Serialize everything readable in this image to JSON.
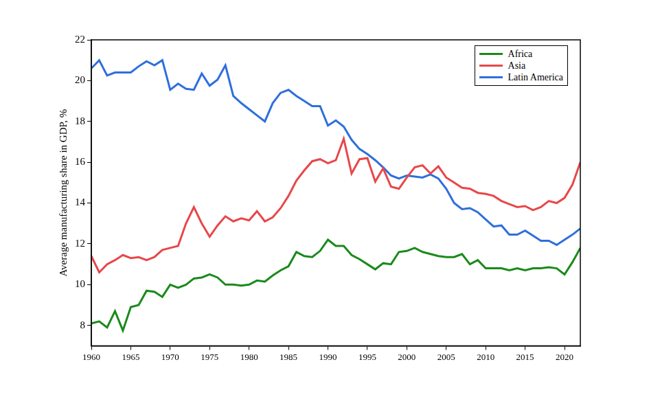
{
  "chart_data": {
    "type": "line",
    "y_label": "Average manufacturing share in GDP, %",
    "x": [
      1960,
      1961,
      1962,
      1963,
      1964,
      1965,
      1966,
      1967,
      1968,
      1969,
      1970,
      1971,
      1972,
      1973,
      1974,
      1975,
      1976,
      1977,
      1978,
      1979,
      1980,
      1981,
      1982,
      1983,
      1984,
      1985,
      1986,
      1987,
      1988,
      1989,
      1990,
      1991,
      1992,
      1993,
      1994,
      1995,
      1996,
      1997,
      1998,
      1999,
      2000,
      2001,
      2002,
      2003,
      2004,
      2005,
      2006,
      2007,
      2008,
      2009,
      2010,
      2011,
      2012,
      2013,
      2014,
      2015,
      2016,
      2017,
      2018,
      2019,
      2020,
      2021,
      2022
    ],
    "series": [
      {
        "name": "Africa",
        "color": "#1a8a1a",
        "values": [
          8.1,
          8.2,
          7.9,
          8.7,
          7.75,
          8.9,
          9.0,
          9.7,
          9.65,
          9.4,
          10.0,
          9.85,
          10.0,
          10.3,
          10.35,
          10.5,
          10.35,
          10.0,
          10.0,
          9.95,
          10.0,
          10.2,
          10.15,
          10.45,
          10.7,
          10.9,
          11.6,
          11.4,
          11.35,
          11.65,
          12.2,
          11.9,
          11.9,
          11.45,
          11.25,
          11.0,
          10.75,
          11.05,
          11.0,
          11.6,
          11.65,
          11.8,
          11.6,
          11.5,
          11.4,
          11.35,
          11.35,
          11.5,
          11.0,
          11.2,
          10.8,
          10.8,
          10.8,
          10.7,
          10.8,
          10.7,
          10.8,
          10.8,
          10.85,
          10.8,
          10.5,
          11.1,
          11.8
        ]
      },
      {
        "name": "Asia",
        "color": "#e8474a",
        "values": [
          11.4,
          10.6,
          11.0,
          11.2,
          11.45,
          11.3,
          11.35,
          11.2,
          11.35,
          11.7,
          11.8,
          11.9,
          13.0,
          13.8,
          13.0,
          12.35,
          12.9,
          13.35,
          13.1,
          13.25,
          13.15,
          13.6,
          13.1,
          13.3,
          13.75,
          14.35,
          15.1,
          15.6,
          16.05,
          16.15,
          15.95,
          16.1,
          17.15,
          15.45,
          16.15,
          16.2,
          15.05,
          15.7,
          14.8,
          14.7,
          15.25,
          15.75,
          15.85,
          15.45,
          15.8,
          15.25,
          15.0,
          14.75,
          14.7,
          14.5,
          14.45,
          14.35,
          14.1,
          13.95,
          13.8,
          13.85,
          13.65,
          13.8,
          14.1,
          14.0,
          14.25,
          14.9,
          16.0
        ]
      },
      {
        "name": "Latin America",
        "color": "#2e6fdc",
        "values": [
          20.6,
          21.0,
          20.25,
          20.4,
          20.4,
          20.4,
          20.7,
          20.95,
          20.75,
          21.0,
          19.55,
          19.85,
          19.6,
          19.55,
          20.35,
          19.75,
          20.05,
          20.75,
          19.25,
          18.9,
          18.6,
          18.3,
          18.0,
          18.9,
          19.4,
          19.55,
          19.25,
          19.0,
          18.75,
          18.75,
          17.8,
          18.05,
          17.75,
          17.1,
          16.65,
          16.4,
          16.1,
          15.75,
          15.35,
          15.2,
          15.35,
          15.3,
          15.25,
          15.4,
          15.2,
          14.7,
          14.0,
          13.7,
          13.75,
          13.55,
          13.2,
          12.85,
          12.9,
          12.45,
          12.45,
          12.65,
          12.4,
          12.15,
          12.15,
          11.95,
          12.2,
          12.45,
          12.75
        ]
      }
    ],
    "xlim": [
      1960,
      2022
    ],
    "xticks": [
      1960,
      1965,
      1970,
      1975,
      1980,
      1985,
      1990,
      1995,
      2000,
      2005,
      2010,
      2015,
      2020
    ],
    "ylim": [
      7,
      22
    ],
    "yticks": [
      8,
      10,
      12,
      14,
      16,
      18,
      20,
      22
    ],
    "grid": false,
    "legend": "upper right"
  }
}
